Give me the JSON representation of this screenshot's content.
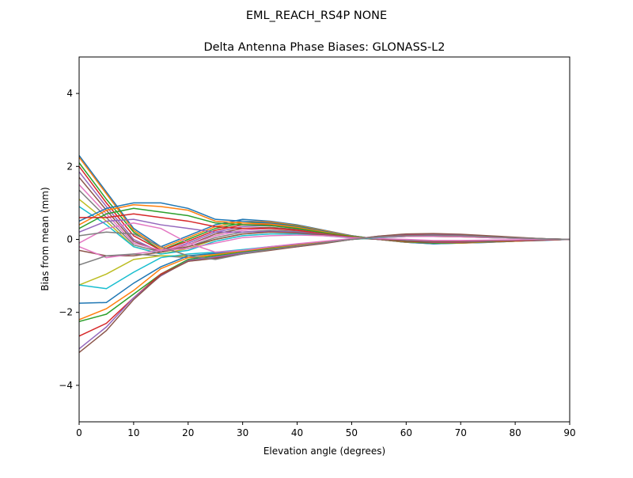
{
  "chart_data": {
    "type": "line",
    "suptitle": "EML_REACH_RS4P  NONE",
    "title": "Delta Antenna Phase Biases: GLONASS-L2",
    "xlabel": "Elevation angle (degrees)",
    "ylabel": "Bias from mean (mm)",
    "xlim": [
      0,
      90
    ],
    "ylim": [
      -5,
      5
    ],
    "xticks": [
      0,
      10,
      20,
      30,
      40,
      50,
      60,
      70,
      80,
      90
    ],
    "yticks": [
      -4,
      -2,
      0,
      2,
      4
    ],
    "ytick_labels": [
      "−4",
      "−2",
      "0",
      "2",
      "4"
    ],
    "grid": false,
    "x": [
      0,
      5,
      10,
      15,
      20,
      25,
      30,
      35,
      40,
      45,
      50,
      55,
      60,
      65,
      70,
      75,
      80,
      85,
      90
    ],
    "colors": [
      "#1f77b4",
      "#ff7f0e",
      "#2ca02c",
      "#d62728",
      "#9467bd",
      "#8c564b",
      "#e377c2",
      "#7f7f7f",
      "#bcbd22",
      "#17becf"
    ],
    "series": [
      {
        "values": [
          2.3,
          1.3,
          0.3,
          -0.2,
          0.1,
          0.4,
          0.55,
          0.5,
          0.4,
          0.25,
          0.1,
          0,
          -0.08,
          -0.12,
          -0.1,
          -0.08,
          -0.05,
          -0.03,
          0
        ]
      },
      {
        "values": [
          2.25,
          1.25,
          0.25,
          -0.25,
          0.05,
          0.35,
          0.5,
          0.48,
          0.38,
          0.24,
          0.1,
          0,
          -0.08,
          -0.1,
          -0.1,
          -0.07,
          -0.05,
          -0.02,
          0
        ]
      },
      {
        "values": [
          2.1,
          1.1,
          0.2,
          -0.3,
          0,
          0.3,
          0.45,
          0.45,
          0.36,
          0.22,
          0.09,
          0,
          -0.07,
          -0.1,
          -0.09,
          -0.07,
          -0.04,
          -0.02,
          0
        ]
      },
      {
        "values": [
          2.0,
          1.0,
          0.1,
          -0.3,
          -0.05,
          0.25,
          0.4,
          0.4,
          0.33,
          0.2,
          0.08,
          0,
          -0.06,
          -0.1,
          -0.09,
          -0.06,
          -0.04,
          -0.02,
          0
        ]
      },
      {
        "values": [
          1.85,
          0.9,
          0.0,
          -0.35,
          -0.1,
          0.2,
          0.35,
          0.38,
          0.3,
          0.18,
          0.07,
          0,
          -0.06,
          -0.09,
          -0.08,
          -0.06,
          -0.04,
          -0.02,
          0
        ]
      },
      {
        "values": [
          1.7,
          0.8,
          -0.05,
          -0.35,
          -0.15,
          0.15,
          0.3,
          0.33,
          0.27,
          0.16,
          0.06,
          0,
          -0.05,
          -0.08,
          -0.08,
          -0.06,
          -0.04,
          -0.02,
          0
        ]
      },
      {
        "values": [
          1.5,
          0.7,
          -0.1,
          -0.3,
          -0.15,
          0.1,
          0.25,
          0.3,
          0.25,
          0.15,
          0.06,
          0,
          -0.05,
          -0.08,
          -0.07,
          -0.05,
          -0.03,
          -0.02,
          0
        ]
      },
      {
        "values": [
          1.35,
          0.6,
          -0.15,
          -0.35,
          -0.2,
          0.05,
          0.2,
          0.25,
          0.22,
          0.13,
          0.05,
          0,
          -0.04,
          -0.07,
          -0.07,
          -0.05,
          -0.03,
          -0.01,
          0
        ]
      },
      {
        "values": [
          1.1,
          0.5,
          -0.2,
          -0.4,
          -0.25,
          0,
          0.15,
          0.2,
          0.18,
          0.11,
          0.04,
          0,
          -0.04,
          -0.06,
          -0.06,
          -0.04,
          -0.03,
          -0.01,
          0
        ]
      },
      {
        "values": [
          0.9,
          0.4,
          -0.2,
          -0.4,
          -0.3,
          -0.05,
          0.1,
          0.15,
          0.15,
          0.1,
          0.04,
          0,
          -0.03,
          -0.05,
          -0.05,
          -0.04,
          -0.02,
          -0.01,
          0
        ]
      },
      {
        "values": [
          0.5,
          0.85,
          1.0,
          1.0,
          0.85,
          0.55,
          0.5,
          0.45,
          0.35,
          0.22,
          0.1,
          0,
          -0.08,
          -0.12,
          -0.1,
          -0.08,
          -0.05,
          -0.02,
          0
        ]
      },
      {
        "values": [
          0.4,
          0.8,
          0.95,
          0.9,
          0.8,
          0.5,
          0.45,
          0.42,
          0.33,
          0.2,
          0.09,
          0,
          -0.07,
          -0.1,
          -0.1,
          -0.07,
          -0.05,
          -0.02,
          0
        ]
      },
      {
        "values": [
          0.3,
          0.7,
          0.85,
          0.75,
          0.65,
          0.45,
          0.4,
          0.38,
          0.3,
          0.18,
          0.08,
          0,
          -0.06,
          -0.1,
          -0.09,
          -0.06,
          -0.04,
          -0.02,
          0
        ]
      },
      {
        "values": [
          0.6,
          0.6,
          0.7,
          0.6,
          0.5,
          0.35,
          0.3,
          0.3,
          0.25,
          0.15,
          0.06,
          0,
          -0.05,
          -0.08,
          -0.08,
          -0.05,
          -0.04,
          -0.02,
          0
        ]
      },
      {
        "values": [
          0.2,
          0.5,
          0.55,
          0.4,
          0.3,
          0.2,
          0.2,
          0.22,
          0.2,
          0.13,
          0.05,
          0,
          -0.04,
          -0.07,
          -0.07,
          -0.05,
          -0.03,
          -0.01,
          0
        ]
      },
      {
        "values": [
          -0.3,
          -0.45,
          -0.45,
          -0.35,
          -0.2,
          0,
          0.15,
          0.2,
          0.18,
          0.12,
          0.05,
          0,
          -0.04,
          -0.06,
          -0.06,
          -0.04,
          -0.03,
          -0.01,
          0
        ]
      },
      {
        "values": [
          -0.2,
          -0.5,
          -0.4,
          -0.3,
          -0.25,
          -0.1,
          0.05,
          0.1,
          0.12,
          0.1,
          0.05,
          0.02,
          0,
          -0.03,
          -0.03,
          -0.02,
          -0.01,
          0,
          0
        ]
      },
      {
        "values": [
          -0.7,
          -0.45,
          -0.4,
          -0.45,
          -0.5,
          -0.5,
          -0.35,
          -0.25,
          -0.15,
          -0.08,
          0,
          0.05,
          0.08,
          0.08,
          0.07,
          0.05,
          0.03,
          0.01,
          0
        ]
      },
      {
        "values": [
          -1.25,
          -0.95,
          -0.55,
          -0.45,
          -0.45,
          -0.4,
          -0.3,
          -0.22,
          -0.14,
          -0.07,
          0,
          0.05,
          0.08,
          0.08,
          0.07,
          0.05,
          0.03,
          0.01,
          0
        ]
      },
      {
        "values": [
          -1.25,
          -1.35,
          -0.9,
          -0.5,
          -0.4,
          -0.35,
          -0.28,
          -0.2,
          -0.13,
          -0.06,
          0,
          0.05,
          0.08,
          0.09,
          0.08,
          0.05,
          0.03,
          0.01,
          0
        ]
      },
      {
        "values": [
          -1.75,
          -1.73,
          -1.2,
          -0.75,
          -0.45,
          -0.38,
          -0.3,
          -0.22,
          -0.14,
          -0.07,
          0,
          0.06,
          0.1,
          0.1,
          0.09,
          0.06,
          0.04,
          0.02,
          0
        ]
      },
      {
        "values": [
          -2.2,
          -1.9,
          -1.4,
          -0.8,
          -0.5,
          -0.42,
          -0.32,
          -0.24,
          -0.16,
          -0.08,
          0,
          0.07,
          0.11,
          0.12,
          0.1,
          0.07,
          0.04,
          0.02,
          0
        ]
      },
      {
        "values": [
          -2.25,
          -2.05,
          -1.5,
          -0.95,
          -0.55,
          -0.45,
          -0.35,
          -0.26,
          -0.18,
          -0.09,
          0,
          0.08,
          0.12,
          0.13,
          0.11,
          0.08,
          0.05,
          0.02,
          0
        ]
      },
      {
        "values": [
          -2.65,
          -2.3,
          -1.6,
          -0.95,
          -0.6,
          -0.5,
          -0.38,
          -0.28,
          -0.19,
          -0.1,
          0,
          0.08,
          0.13,
          0.14,
          0.12,
          0.08,
          0.05,
          0.02,
          0
        ]
      },
      {
        "values": [
          -3.0,
          -2.4,
          -1.6,
          -1.0,
          -0.58,
          -0.48,
          -0.37,
          -0.28,
          -0.2,
          -0.1,
          0,
          0.09,
          0.14,
          0.15,
          0.13,
          0.09,
          0.05,
          0.02,
          0
        ]
      },
      {
        "values": [
          -3.1,
          -2.5,
          -1.65,
          -0.98,
          -0.6,
          -0.52,
          -0.4,
          -0.3,
          -0.2,
          -0.11,
          0,
          0.09,
          0.15,
          0.16,
          0.14,
          0.1,
          0.06,
          0.02,
          0
        ]
      },
      {
        "values": [
          -0.1,
          0.3,
          0.45,
          0.3,
          -0.1,
          -0.35,
          -0.3,
          -0.2,
          -0.12,
          -0.05,
          0.02,
          0.06,
          0.08,
          0.08,
          0.07,
          0.05,
          0.03,
          0.01,
          0
        ]
      },
      {
        "values": [
          0.1,
          0.2,
          0.15,
          -0.2,
          -0.45,
          -0.55,
          -0.4,
          -0.28,
          -0.18,
          -0.09,
          0,
          0.07,
          0.1,
          0.11,
          0.1,
          0.07,
          0.04,
          0.02,
          0
        ]
      }
    ]
  }
}
